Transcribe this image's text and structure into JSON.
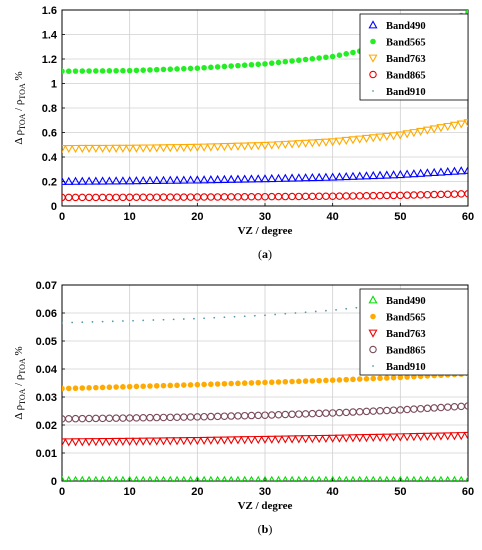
{
  "chart_data": [
    {
      "type": "scatter",
      "panel_label": "(a)",
      "caption": "a",
      "xlabel": "VZ / degree",
      "ylabel": {
        "prefix": "Δ ρ",
        "sub1": "TOA",
        "sep": " / ρ",
        "sub2": "TOA",
        "unit": " %"
      },
      "xlim": [
        0,
        60
      ],
      "ylim": [
        0,
        1.6
      ],
      "xticks": [
        0,
        10,
        20,
        30,
        40,
        50,
        60
      ],
      "yticks": [
        0,
        0.2,
        0.4,
        0.6,
        0.8,
        1,
        1.2,
        1.4,
        1.6
      ],
      "ytick_labels": [
        "0",
        "0.2",
        "0.4",
        "0.6",
        "0.8",
        "1",
        "1.2",
        "1.4",
        "1.6"
      ],
      "grid": true,
      "legend_position": "top-right",
      "x": [
        0,
        10,
        20,
        30,
        40,
        50,
        60
      ],
      "series": [
        {
          "name": "Band490",
          "marker": "triangle-up",
          "color": "#0000ff",
          "values": [
            0.2,
            0.205,
            0.212,
            0.222,
            0.235,
            0.256,
            0.29
          ]
        },
        {
          "name": "Band565",
          "marker": "dot",
          "color": "#22ee22",
          "values": [
            1.1,
            1.105,
            1.125,
            1.16,
            1.22,
            1.33,
            1.58
          ]
        },
        {
          "name": "Band763",
          "marker": "triangle-down",
          "color": "#ffaa00",
          "values": [
            0.47,
            0.472,
            0.48,
            0.495,
            0.525,
            0.58,
            0.68
          ]
        },
        {
          "name": "Band865",
          "marker": "circle",
          "color": "#ee0000",
          "values": [
            0.07,
            0.071,
            0.073,
            0.076,
            0.08,
            0.087,
            0.1
          ]
        },
        {
          "name": "Band910",
          "marker": "point",
          "color": "#5599aa",
          "values": []
        }
      ]
    },
    {
      "type": "scatter",
      "panel_label": "(b)",
      "caption": "b",
      "xlabel": "VZ / degree",
      "ylabel": {
        "prefix": "Δ ρ",
        "sub1": "TOA",
        "sep": " / ρ",
        "sub2": "TOA",
        "unit": " %"
      },
      "xlim": [
        0,
        60
      ],
      "ylim": [
        0,
        0.07
      ],
      "xticks": [
        0,
        10,
        20,
        30,
        40,
        50,
        60
      ],
      "yticks": [
        0,
        0.01,
        0.02,
        0.03,
        0.04,
        0.05,
        0.06,
        0.07
      ],
      "ytick_labels": [
        "0",
        "0.01",
        "0.02",
        "0.03",
        "0.04",
        "0.05",
        "0.06",
        "0.07"
      ],
      "grid": true,
      "legend_position": "top-right",
      "x": [
        0,
        10,
        20,
        30,
        40,
        50,
        60
      ],
      "series": [
        {
          "name": "Band490",
          "marker": "triangle-up",
          "color": "#00dd00",
          "values": [
            0.0002,
            0.0002,
            0.0002,
            0.0002,
            0.0002,
            0.0002,
            0.0002
          ]
        },
        {
          "name": "Band565",
          "marker": "dot",
          "color": "#ffaa00",
          "values": [
            0.033,
            0.0337,
            0.0344,
            0.0352,
            0.036,
            0.037,
            0.0383
          ]
        },
        {
          "name": "Band763",
          "marker": "triangle-down",
          "color": "#ee0000",
          "values": [
            0.014,
            0.0142,
            0.0145,
            0.0149,
            0.0153,
            0.0158,
            0.0163
          ]
        },
        {
          "name": "Band865",
          "marker": "circle",
          "color": "#7a4a5a",
          "values": [
            0.0222,
            0.0225,
            0.0229,
            0.0235,
            0.0243,
            0.0254,
            0.0268
          ]
        },
        {
          "name": "Band910",
          "marker": "point",
          "color": "#5599aa",
          "values": [
            0.0565,
            0.0572,
            0.058,
            0.0592,
            0.061,
            0.0635,
            0.067
          ]
        }
      ]
    }
  ]
}
